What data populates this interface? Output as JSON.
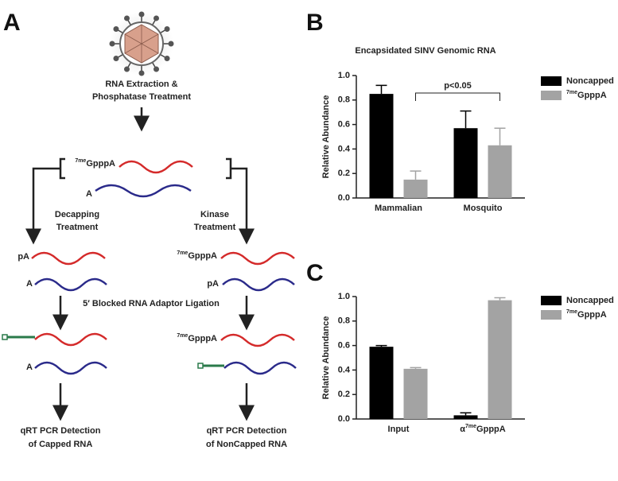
{
  "panels": {
    "a": "A",
    "b": "B",
    "c": "C"
  },
  "diagram": {
    "step1": [
      "RNA Extraction &",
      "Phosphatase Treatment"
    ],
    "capped": "7meGpppA",
    "uncapped": "A",
    "left_treatment": [
      "Decapping",
      "Treatment"
    ],
    "right_treatment": [
      "Kinase",
      "Treatment"
    ],
    "left_top": "pA",
    "left_bottom": "A",
    "right_top": "7meGpppA",
    "right_bottom": "pA",
    "ligation": "5′ Blocked RNA Adaptor Ligation",
    "left_lig_bottom": "A",
    "right_lig_top": "7meGpppA",
    "left_result": [
      "qRT PCR Detection",
      "of Capped RNA"
    ],
    "right_result": [
      "qRT PCR Detection",
      "of NonCapped RNA"
    ]
  },
  "chart_data": [
    {
      "type": "bar",
      "title": "Encapsidated SINV Genomic RNA",
      "ylabel": "Relative Abundance",
      "categories": [
        "Mammalian",
        "Mosquito"
      ],
      "series": [
        {
          "name": "Noncapped",
          "color": "#000000",
          "values": [
            0.85,
            0.57
          ],
          "errors": [
            0.07,
            0.14
          ]
        },
        {
          "name": "7meGpppA",
          "color": "#a3a3a3",
          "values": [
            0.15,
            0.43
          ],
          "errors": [
            0.07,
            0.14
          ]
        }
      ],
      "ylim": [
        0,
        1
      ],
      "yticks": [
        {
          "value": 0,
          "label": "0.0"
        },
        0.2,
        0.4,
        0.6,
        0.8,
        {
          "value": 1,
          "label": "1.0"
        }
      ],
      "annotation": "p<0.05",
      "legend": "right"
    },
    {
      "type": "bar",
      "ylabel": "Relative Abundance",
      "categories": [
        "Input",
        "α7meGpppA"
      ],
      "series": [
        {
          "name": "Noncapped",
          "color": "#000000",
          "values": [
            0.59,
            0.03
          ],
          "errors": [
            0.01,
            0.02
          ]
        },
        {
          "name": "7meGpppA",
          "color": "#a3a3a3",
          "values": [
            0.41,
            0.97
          ],
          "errors": [
            0.01,
            0.02
          ]
        }
      ],
      "ylim": [
        0,
        1
      ],
      "yticks": [
        {
          "value": 0,
          "label": "0.0"
        },
        0.2,
        0.4,
        0.6,
        0.8,
        {
          "value": 1,
          "label": "1.0"
        }
      ],
      "legend": "right"
    }
  ]
}
